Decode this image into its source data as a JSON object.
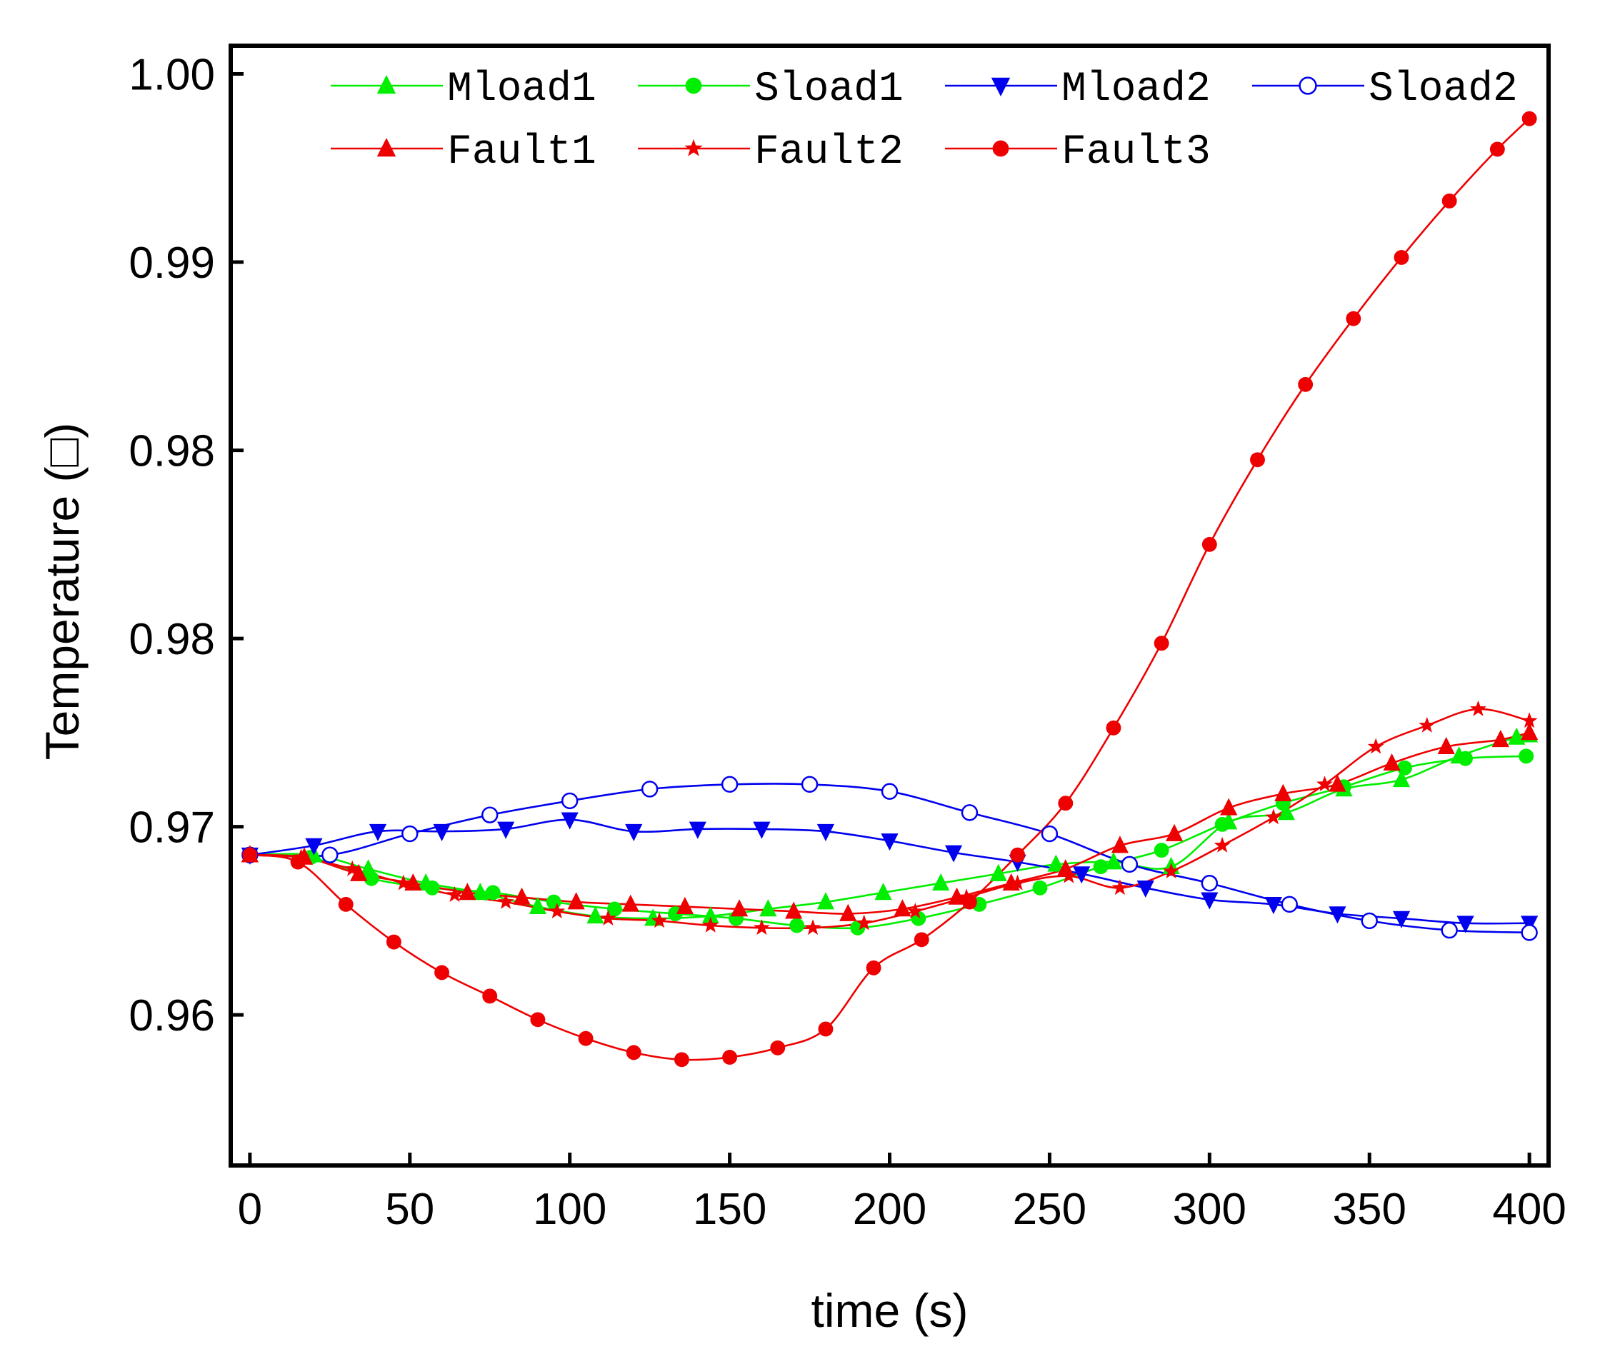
{
  "chart_data": {
    "type": "line",
    "title": "",
    "xlabel": "time (s)",
    "ylabel": "Temperature (□)",
    "xlim": [
      -6,
      406
    ],
    "ylim": [
      0.9536,
      1.0012
    ],
    "x_ticks": [
      0,
      50,
      100,
      150,
      200,
      250,
      300,
      350,
      400
    ],
    "x_tick_labels": [
      "0",
      "50",
      "100",
      "150",
      "200",
      "250",
      "300",
      "350",
      "400"
    ],
    "y_ticks": [
      0.96,
      0.968,
      0.976,
      0.984,
      0.992,
      1.0
    ],
    "y_tick_labels": [
      "0.96",
      "0.97",
      "0.98",
      "0.98",
      "0.99",
      "1.00"
    ],
    "grid": false,
    "legend_position": "top",
    "series": [
      {
        "name": "Mload1",
        "color": "#00ee00",
        "marker": "triangle-up",
        "x": [
          0,
          20,
          37,
          55,
          72,
          90,
          108,
          126,
          144,
          162,
          180,
          198,
          216,
          234,
          252,
          270,
          288,
          306,
          324,
          342,
          360,
          378,
          396,
          400
        ],
        "y": [
          0.9668,
          0.9668,
          0.9662,
          0.9656,
          0.9652,
          0.9646,
          0.9642,
          0.9641,
          0.9642,
          0.9645,
          0.9648,
          0.9652,
          0.9656,
          0.966,
          0.9664,
          0.9665,
          0.9663,
          0.9682,
          0.9686,
          0.9696,
          0.97,
          0.971,
          0.9718,
          0.9719
        ]
      },
      {
        "name": "Sload1",
        "color": "#00ee00",
        "marker": "circle",
        "x": [
          0,
          19,
          38,
          57,
          76,
          95,
          114,
          133,
          152,
          171,
          190,
          209,
          228,
          247,
          266,
          285,
          304,
          323,
          342,
          361,
          380,
          399
        ],
        "y": [
          0.9668,
          0.9667,
          0.9658,
          0.9654,
          0.9652,
          0.9648,
          0.9645,
          0.9643,
          0.9641,
          0.9638,
          0.9637,
          0.9641,
          0.9647,
          0.9654,
          0.9663,
          0.967,
          0.9681,
          0.969,
          0.9697,
          0.9705,
          0.9709,
          0.971
        ]
      },
      {
        "name": "Mload2",
        "color": "#0000ee",
        "marker": "triangle-down",
        "x": [
          0,
          20,
          40,
          60,
          80,
          100,
          120,
          140,
          160,
          180,
          200,
          220,
          240,
          260,
          280,
          300,
          320,
          340,
          360,
          380,
          400
        ],
        "y": [
          0.9668,
          0.9672,
          0.9678,
          0.9678,
          0.9679,
          0.9683,
          0.9678,
          0.9679,
          0.9679,
          0.9678,
          0.9674,
          0.9669,
          0.9665,
          0.966,
          0.9654,
          0.9649,
          0.9647,
          0.9643,
          0.9641,
          0.9639,
          0.9639
        ]
      },
      {
        "name": "Sload2",
        "color": "#0000ee",
        "marker": "circle-open",
        "x": [
          0,
          25,
          50,
          75,
          100,
          125,
          150,
          175,
          200,
          225,
          250,
          275,
          300,
          325,
          350,
          375,
          400
        ],
        "y": [
          0.9668,
          0.9668,
          0.9677,
          0.9685,
          0.9691,
          0.9696,
          0.9698,
          0.9698,
          0.9695,
          0.9686,
          0.9677,
          0.9664,
          0.9656,
          0.9647,
          0.964,
          0.9636,
          0.9635
        ]
      },
      {
        "name": "Fault1",
        "color": "#ee0000",
        "marker": "triangle-up",
        "x": [
          0,
          17,
          34,
          51,
          68,
          85,
          102,
          119,
          136,
          153,
          170,
          187,
          204,
          221,
          238,
          255,
          272,
          289,
          306,
          323,
          340,
          357,
          374,
          391,
          400
        ],
        "y": [
          0.9668,
          0.9667,
          0.966,
          0.9656,
          0.9652,
          0.965,
          0.9648,
          0.9647,
          0.9646,
          0.9645,
          0.9644,
          0.9643,
          0.9645,
          0.965,
          0.9656,
          0.9662,
          0.9672,
          0.9677,
          0.9688,
          0.9694,
          0.9698,
          0.9707,
          0.9714,
          0.9717,
          0.972
        ]
      },
      {
        "name": "Fault2",
        "color": "#ee0000",
        "marker": "star",
        "x": [
          0,
          16,
          32,
          48,
          64,
          80,
          96,
          112,
          128,
          144,
          160,
          176,
          192,
          208,
          224,
          240,
          256,
          272,
          288,
          304,
          320,
          336,
          352,
          368,
          384,
          400
        ],
        "y": [
          0.9668,
          0.9667,
          0.9662,
          0.9656,
          0.9651,
          0.9648,
          0.9644,
          0.9641,
          0.964,
          0.9638,
          0.9637,
          0.9637,
          0.9639,
          0.9644,
          0.965,
          0.9656,
          0.9659,
          0.9654,
          0.9661,
          0.9672,
          0.9684,
          0.9698,
          0.9714,
          0.9723,
          0.973,
          0.9725
        ]
      },
      {
        "name": "Fault3",
        "color": "#ee0000",
        "marker": "circle",
        "x": [
          0,
          15,
          30,
          45,
          60,
          75,
          90,
          105,
          120,
          135,
          150,
          165,
          180,
          195,
          210,
          225,
          240,
          255,
          270,
          285,
          300,
          315,
          330,
          345,
          360,
          375,
          390,
          400
        ],
        "y": [
          0.9668,
          0.9665,
          0.9647,
          0.9631,
          0.9618,
          0.9608,
          0.9598,
          0.959,
          0.9584,
          0.9581,
          0.9582,
          0.9586,
          0.9594,
          0.962,
          0.9632,
          0.9648,
          0.9668,
          0.969,
          0.9722,
          0.9758,
          0.98,
          0.9836,
          0.9868,
          0.9896,
          0.9922,
          0.9946,
          0.9968,
          0.9981
        ]
      }
    ]
  }
}
